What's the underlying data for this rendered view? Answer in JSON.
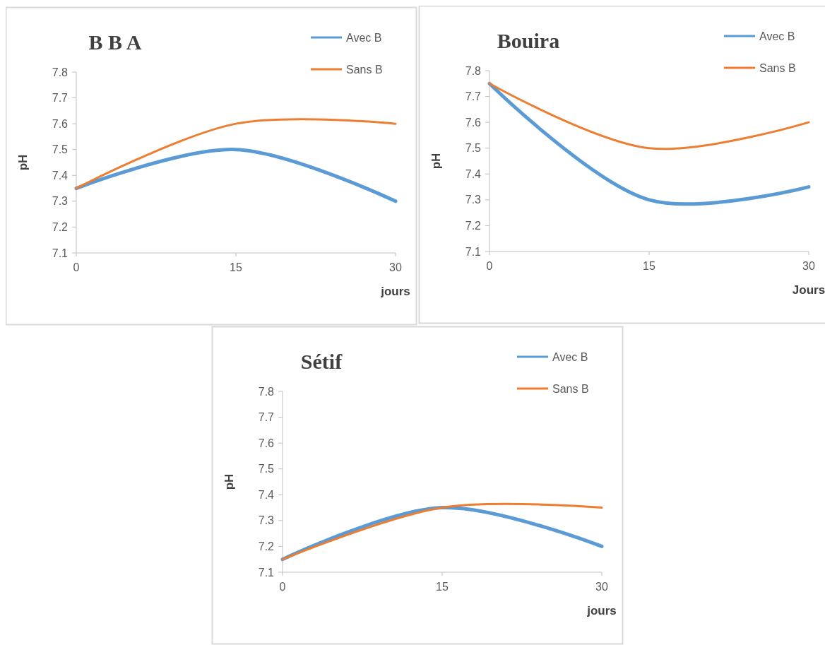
{
  "chart_data": [
    {
      "type": "line",
      "title": "B B A",
      "xlabel": "jours",
      "ylabel": "pH",
      "x": [
        0,
        15,
        30
      ],
      "xlim": [
        0,
        30
      ],
      "xticks": [
        0,
        15,
        30
      ],
      "ylim": [
        7.1,
        7.8
      ],
      "yticks": [
        7.1,
        7.2,
        7.3,
        7.4,
        7.5,
        7.6,
        7.7,
        7.8
      ],
      "grid": false,
      "legend": "top right",
      "series": [
        {
          "name": "Avec B",
          "color": "#5b9bd5",
          "values": [
            7.35,
            7.5,
            7.3
          ]
        },
        {
          "name": "Sans B",
          "color": "#ed7d31",
          "values": [
            7.35,
            7.6,
            7.6
          ]
        }
      ]
    },
    {
      "type": "line",
      "title": "Bouira",
      "xlabel": "Jours",
      "ylabel": "pH",
      "x": [
        0,
        15,
        30
      ],
      "xlim": [
        0,
        30
      ],
      "xticks": [
        0,
        15,
        30
      ],
      "ylim": [
        7.1,
        7.8
      ],
      "yticks": [
        7.1,
        7.2,
        7.3,
        7.4,
        7.5,
        7.6,
        7.7,
        7.8
      ],
      "grid": false,
      "legend": "top right",
      "series": [
        {
          "name": "Avec B",
          "color": "#5b9bd5",
          "values": [
            7.75,
            7.3,
            7.35
          ]
        },
        {
          "name": "Sans B",
          "color": "#ed7d31",
          "values": [
            7.75,
            7.5,
            7.6
          ]
        }
      ]
    },
    {
      "type": "line",
      "title": "Sétif",
      "xlabel": "jours",
      "ylabel": "pH",
      "x": [
        0,
        15,
        30
      ],
      "xlim": [
        0,
        30
      ],
      "xticks": [
        0,
        15,
        30
      ],
      "ylim": [
        7.1,
        7.8
      ],
      "yticks": [
        7.1,
        7.2,
        7.3,
        7.4,
        7.5,
        7.6,
        7.7,
        7.8
      ],
      "grid": false,
      "legend": "top right",
      "series": [
        {
          "name": "Avec B",
          "color": "#5b9bd5",
          "values": [
            7.15,
            7.35,
            7.2
          ]
        },
        {
          "name": "Sans B",
          "color": "#ed7d31",
          "values": [
            7.15,
            7.35,
            7.35
          ]
        }
      ]
    }
  ]
}
